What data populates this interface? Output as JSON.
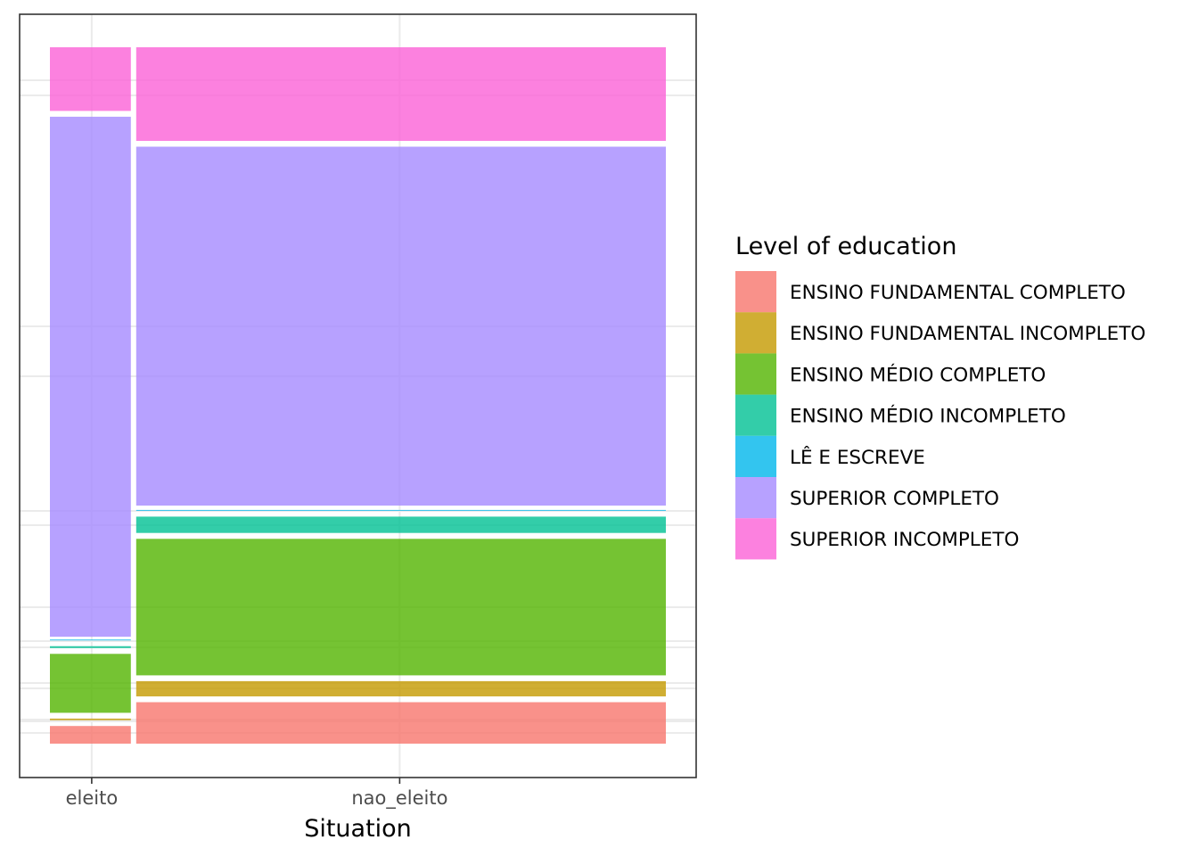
{
  "chart_data": {
    "type": "mosaic",
    "xlabel": "Situation",
    "ylabel": "",
    "legend_title": "Level of education",
    "legend_position": "right",
    "grid": true,
    "categories": [
      "eleito",
      "nao_eleito"
    ],
    "category_shares": [
      0.1357,
      0.8643
    ],
    "levels": [
      {
        "name": "ENSINO FUNDAMENTAL COMPLETO",
        "color": "#F8766D"
      },
      {
        "name": "ENSINO FUNDAMENTAL INCOMPLETO",
        "color": "#C49A00"
      },
      {
        "name": "ENSINO MÉDIO COMPLETO",
        "color": "#53B400"
      },
      {
        "name": "ENSINO MÉDIO INCOMPLETO",
        "color": "#00C094"
      },
      {
        "name": "LÊ E ESCREVE",
        "color": "#00B6EB"
      },
      {
        "name": "SUPERIOR COMPLETO",
        "color": "#A58AFF"
      },
      {
        "name": "SUPERIOR INCOMPLETO",
        "color": "#FB61D7"
      }
    ],
    "series": [
      {
        "category": "eleito",
        "shares": [
          0.0295,
          0.0106,
          0.093,
          0.011,
          0.0053,
          0.755,
          0.0956
        ]
      },
      {
        "category": "nao_eleito",
        "shares": [
          0.0637,
          0.0302,
          0.2044,
          0.0318,
          0.0076,
          0.5237,
          0.1386
        ]
      }
    ],
    "xlim": [
      0,
      1
    ],
    "ylim": [
      0,
      1
    ]
  }
}
